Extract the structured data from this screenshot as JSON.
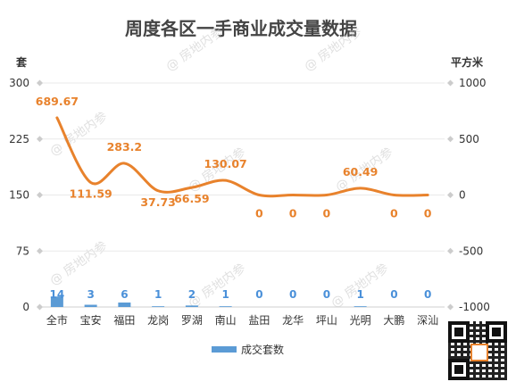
{
  "chart_data": {
    "type": "bar+line",
    "title": "周度各区一手商业成交量数据",
    "left_unit": "套",
    "right_unit": "平方米",
    "categories": [
      "全市",
      "宝安",
      "福田",
      "龙岗",
      "罗湖",
      "南山",
      "盐田",
      "龙华",
      "坪山",
      "光明",
      "大鹏",
      "深汕"
    ],
    "left_axis": {
      "ticks": [
        0,
        75,
        150,
        225,
        300
      ],
      "ylim": [
        0,
        300
      ]
    },
    "right_axis": {
      "ticks": [
        -1000,
        -500,
        0,
        500,
        1000
      ],
      "ylim": [
        -1000,
        1000
      ]
    },
    "series": [
      {
        "name": "成交套数",
        "type": "bar",
        "axis": "left",
        "color": "#5b9bd5",
        "values": [
          14,
          3,
          6,
          1,
          2,
          1,
          0,
          0,
          0,
          1,
          0,
          0
        ],
        "labels": [
          "14",
          "3",
          "6",
          "1",
          "2",
          "1",
          "0",
          "0",
          "0",
          "1",
          "0",
          "0"
        ]
      },
      {
        "type": "line",
        "axis": "right",
        "color": "#e8822c",
        "values": [
          689.67,
          111.59,
          283.2,
          37.73,
          66.59,
          130.07,
          0,
          0,
          0,
          60.49,
          0,
          0
        ],
        "labels": [
          "689.67",
          "111.59",
          "283.2",
          "37.73",
          "66.59",
          "130.07",
          "0",
          "0",
          "0",
          "60.49",
          "0",
          "0"
        ]
      }
    ],
    "legend_position": "bottom",
    "grid": true
  },
  "watermark": "@ 房地内参",
  "qr_icon": "qr-code-icon"
}
